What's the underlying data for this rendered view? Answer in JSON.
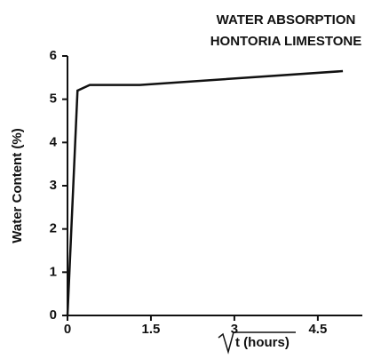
{
  "chart_data": {
    "type": "line",
    "title": [
      "WATER ABSORPTION",
      "HONTORIA LIMESTONE"
    ],
    "y_label": "Water Content (%)",
    "x_label": "t (hours)",
    "x": [
      0,
      0.18,
      0.4,
      1.3,
      4.95
    ],
    "series": [
      {
        "color": "#111111",
        "values": [
          0,
          5.2,
          5.33,
          5.33,
          5.65
        ]
      }
    ],
    "xlim": [
      0,
      5.3
    ],
    "xticks": [
      0,
      1.5,
      3,
      4.5
    ],
    "ylim": [
      0,
      6
    ],
    "yticks": [
      0,
      1,
      2,
      3,
      4,
      5,
      6
    ]
  }
}
